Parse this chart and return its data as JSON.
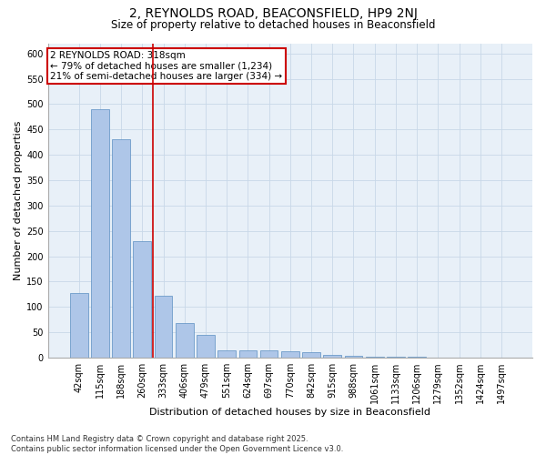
{
  "title1": "2, REYNOLDS ROAD, BEACONSFIELD, HP9 2NJ",
  "title2": "Size of property relative to detached houses in Beaconsfield",
  "xlabel": "Distribution of detached houses by size in Beaconsfield",
  "ylabel": "Number of detached properties",
  "bar_labels": [
    "42sqm",
    "115sqm",
    "188sqm",
    "260sqm",
    "333sqm",
    "406sqm",
    "479sqm",
    "551sqm",
    "624sqm",
    "697sqm",
    "770sqm",
    "842sqm",
    "915sqm",
    "988sqm",
    "1061sqm",
    "1133sqm",
    "1206sqm",
    "1279sqm",
    "1352sqm",
    "1424sqm",
    "1497sqm"
  ],
  "bar_values": [
    128,
    490,
    430,
    229,
    122,
    69,
    45,
    14,
    14,
    15,
    13,
    10,
    5,
    3,
    2,
    1,
    1,
    0,
    0,
    0,
    0
  ],
  "bar_color": "#aec6e8",
  "bar_edge_color": "#5a8fc2",
  "grid_color": "#c8d8e8",
  "bg_color": "#e8f0f8",
  "vline_x": 3.5,
  "vline_color": "#cc0000",
  "annotation_text": "2 REYNOLDS ROAD: 318sqm\n← 79% of detached houses are smaller (1,234)\n21% of semi-detached houses are larger (334) →",
  "annotation_box_color": "#cc0000",
  "ylim": [
    0,
    620
  ],
  "yticks": [
    0,
    50,
    100,
    150,
    200,
    250,
    300,
    350,
    400,
    450,
    500,
    550,
    600
  ],
  "footnote": "Contains HM Land Registry data © Crown copyright and database right 2025.\nContains public sector information licensed under the Open Government Licence v3.0.",
  "title1_fontsize": 10,
  "title2_fontsize": 8.5,
  "xlabel_fontsize": 8,
  "ylabel_fontsize": 8,
  "tick_fontsize": 7,
  "annotation_fontsize": 7.5,
  "footnote_fontsize": 6
}
